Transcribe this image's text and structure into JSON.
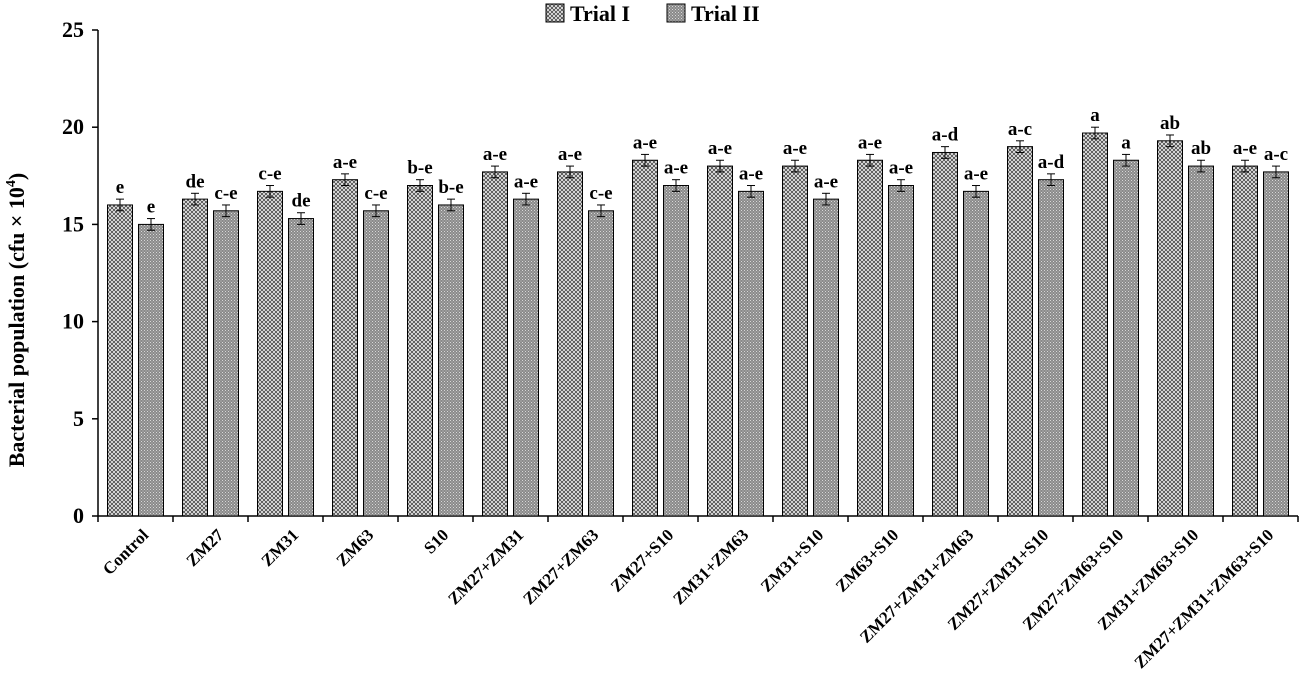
{
  "chart_data": {
    "type": "bar",
    "title": "",
    "xlabel": "",
    "ylabel": "Bacterial population (cfu × 10",
    "ylabel_sup": "4",
    "ylabel_close": ")",
    "ylim": [
      0,
      25
    ],
    "yticks": [
      0,
      5,
      10,
      15,
      20,
      25
    ],
    "grid": false,
    "legend_position": "top-center",
    "categories": [
      "Control",
      "ZM27",
      "ZM31",
      "ZM63",
      "S10",
      "ZM27+ZM31",
      "ZM27+ZM63",
      "ZM27+S10",
      "ZM31+ZM63",
      "ZM31+S10",
      "ZM63+S10",
      "ZM27+ZM31+ZM63",
      "ZM27+ZM31+S10",
      "ZM27+ZM63+S10",
      "ZM31+ZM63+S10",
      "ZM27+ZM31+ZM63+S10"
    ],
    "series": [
      {
        "name": "Trial I",
        "pattern": "crosshatch-dots",
        "values": [
          16.0,
          16.3,
          16.7,
          17.3,
          17.0,
          17.7,
          17.7,
          18.3,
          18.0,
          18.0,
          18.3,
          18.7,
          19.0,
          19.7,
          19.3,
          18.0
        ],
        "errors": [
          0.3,
          0.3,
          0.3,
          0.3,
          0.3,
          0.3,
          0.3,
          0.3,
          0.3,
          0.3,
          0.3,
          0.3,
          0.3,
          0.3,
          0.3,
          0.3
        ],
        "labels": [
          "e",
          "de",
          "c-e",
          "a-e",
          "b-e",
          "a-e",
          "a-e",
          "a-e",
          "a-e",
          "a-e",
          "a-e",
          "a-d",
          "a-c",
          "a",
          "ab",
          "a-e"
        ]
      },
      {
        "name": "Trial II",
        "pattern": "fine-dots",
        "values": [
          15.0,
          15.7,
          15.3,
          15.7,
          16.0,
          16.3,
          15.7,
          17.0,
          16.7,
          16.3,
          17.0,
          16.7,
          17.3,
          18.3,
          18.0,
          17.7
        ],
        "errors": [
          0.3,
          0.3,
          0.3,
          0.3,
          0.3,
          0.3,
          0.3,
          0.3,
          0.3,
          0.3,
          0.3,
          0.3,
          0.3,
          0.3,
          0.3,
          0.3
        ],
        "labels": [
          "e",
          "c-e",
          "de",
          "c-e",
          "b-e",
          "a-e",
          "c-e",
          "a-e",
          "a-e",
          "a-e",
          "a-e",
          "a-e",
          "a-d",
          "a",
          "ab",
          "a-c"
        ]
      }
    ]
  }
}
